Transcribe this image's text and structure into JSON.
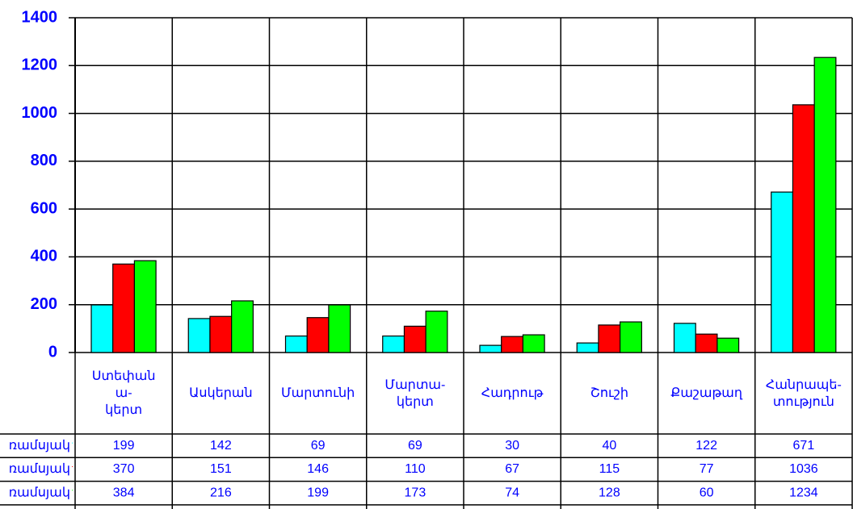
{
  "chart_data": {
    "type": "bar",
    "categories": [
      "Ստեփան\nա-\nկերտ",
      "Ասկերան",
      "Մարտունի",
      "Մարտա-\nկերտ",
      "Հադրութ",
      "Շուշի",
      "Քաշաթաղ",
      "Հանրապե-\nտություն"
    ],
    "series": [
      {
        "name": "ռամսյակ",
        "color": "#00ffff",
        "values": [
          199,
          142,
          69,
          69,
          30,
          40,
          122,
          671
        ]
      },
      {
        "name": "ռամսյակ",
        "color": "#ff0000",
        "values": [
          370,
          151,
          146,
          110,
          67,
          115,
          77,
          1036
        ]
      },
      {
        "name": "ռամսյակ",
        "color": "#00ff00",
        "values": [
          384,
          216,
          199,
          173,
          74,
          128,
          60,
          1234
        ]
      }
    ],
    "ylim": [
      0,
      1400
    ],
    "yticks": [
      0,
      200,
      400,
      600,
      800,
      1000,
      1200,
      1400
    ],
    "grid": true
  }
}
